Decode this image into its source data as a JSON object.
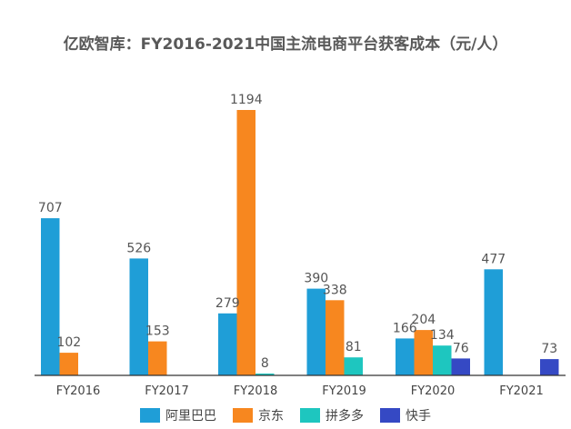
{
  "chart_data": {
    "type": "bar",
    "title": "亿欧智库：FY2016-2021中国主流电商平台获客成本（元/人）",
    "xlabel": "",
    "ylabel": "",
    "categories": [
      "FY2016",
      "FY2017",
      "FY2018",
      "FY2019",
      "FY2020",
      "FY2021"
    ],
    "series": [
      {
        "name": "阿里巴巴",
        "color": "#1f9ed7",
        "values": [
          707,
          526,
          279,
          390,
          166,
          477
        ]
      },
      {
        "name": "京东",
        "color": "#f7871f",
        "values": [
          102,
          153,
          1194,
          338,
          204,
          null
        ]
      },
      {
        "name": "拼多多",
        "color": "#1ec6bf",
        "values": [
          null,
          null,
          8,
          81,
          134,
          null
        ]
      },
      {
        "name": "快手",
        "color": "#3549c4",
        "values": [
          null,
          null,
          null,
          null,
          76,
          73
        ]
      }
    ],
    "ylim": [
      0,
      1194
    ],
    "grid": false,
    "legend_position": "bottom"
  }
}
